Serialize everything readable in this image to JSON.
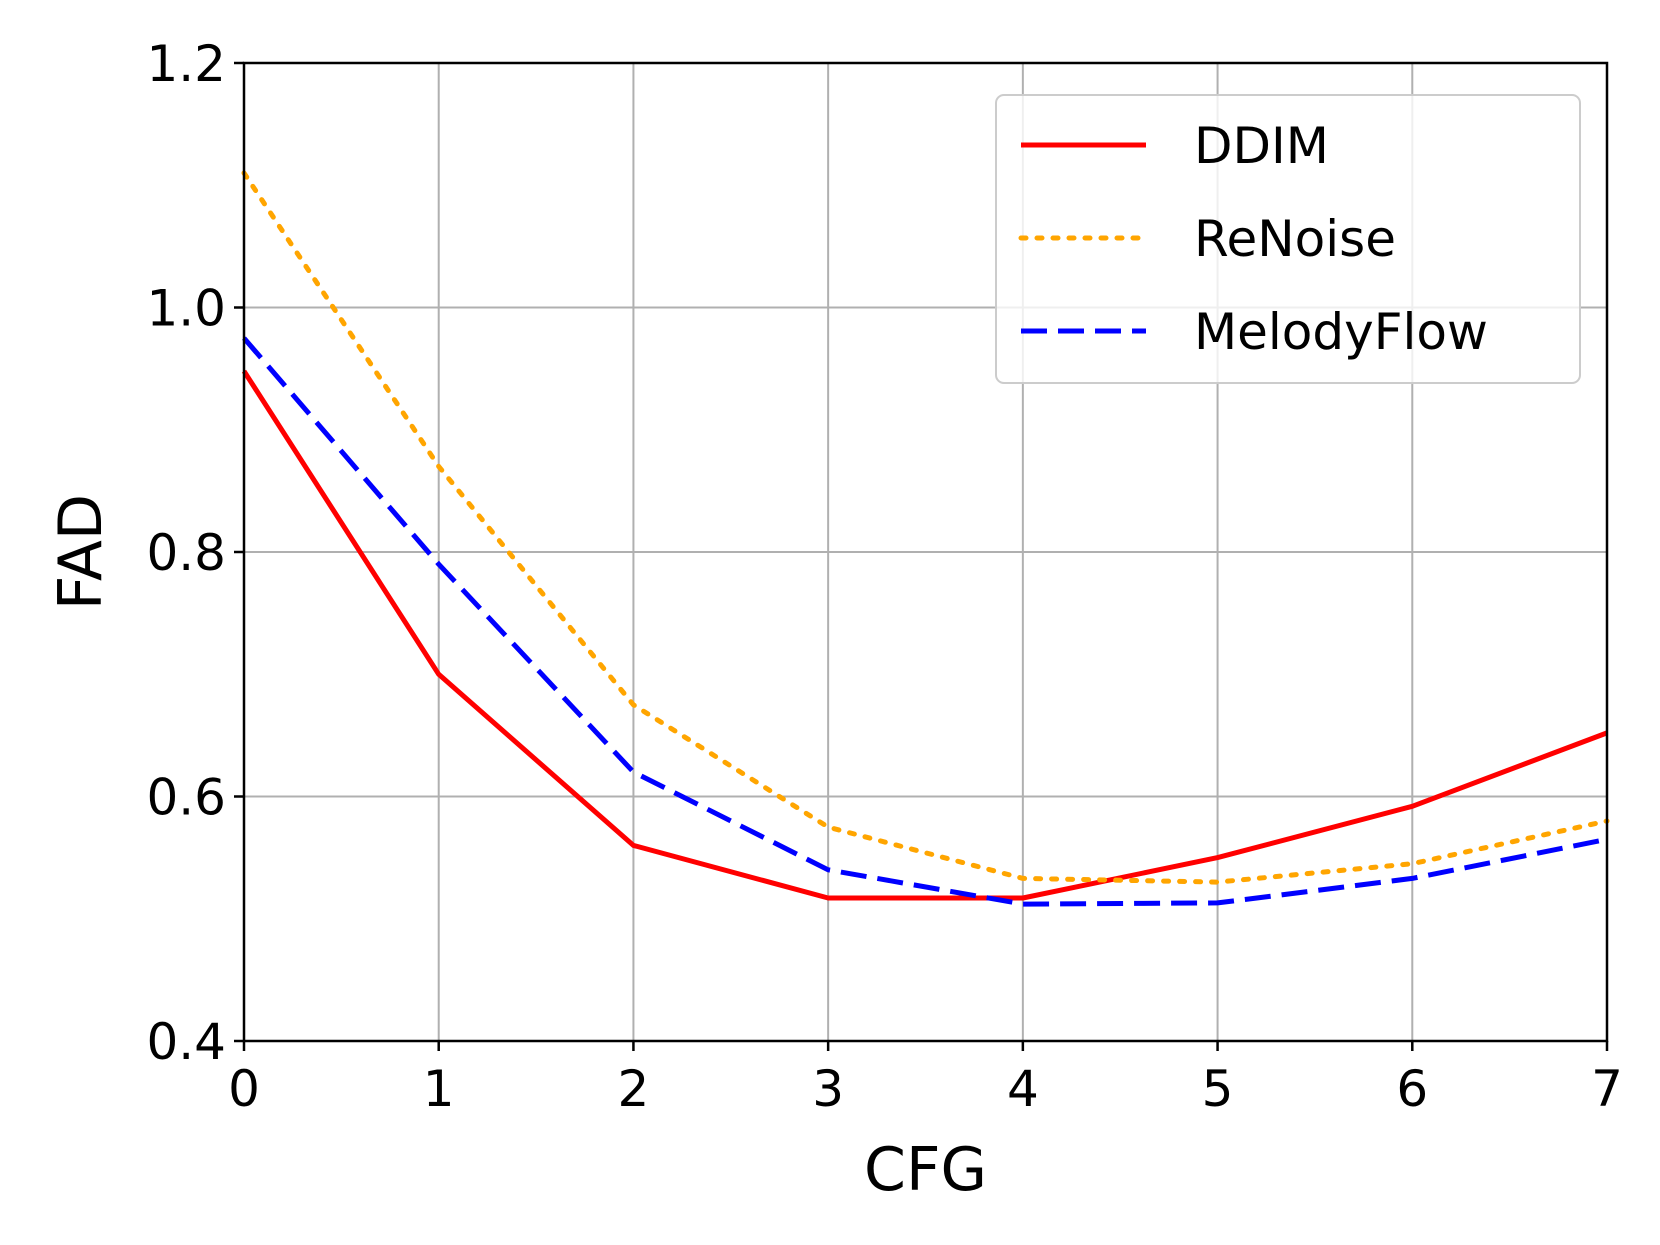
{
  "chart_data": {
    "type": "line",
    "title": "",
    "xlabel": "CFG",
    "ylabel": "FAD",
    "x": [
      0,
      1,
      2,
      3,
      4,
      5,
      6,
      7
    ],
    "xlim": [
      0,
      7
    ],
    "ylim": [
      0.4,
      1.2
    ],
    "xticks": [
      "0",
      "1",
      "2",
      "3",
      "4",
      "5",
      "6",
      "7"
    ],
    "yticks": [
      "0.4",
      "0.6",
      "0.8",
      "1.0",
      "1.2"
    ],
    "grid": true,
    "legend_position": "top-right",
    "series": [
      {
        "name": "DDIM",
        "color": "#ff0000",
        "style": "solid",
        "values": [
          0.948,
          0.7,
          0.56,
          0.517,
          0.517,
          0.55,
          0.592,
          0.652
        ]
      },
      {
        "name": "ReNoise",
        "color": "#ffa500",
        "style": "dotted",
        "values": [
          1.11,
          0.87,
          0.675,
          0.575,
          0.533,
          0.53,
          0.545,
          0.58
        ]
      },
      {
        "name": "MelodyFlow",
        "color": "#0000ff",
        "style": "dashed",
        "values": [
          0.975,
          0.79,
          0.62,
          0.54,
          0.512,
          0.513,
          0.533,
          0.565
        ]
      }
    ]
  }
}
